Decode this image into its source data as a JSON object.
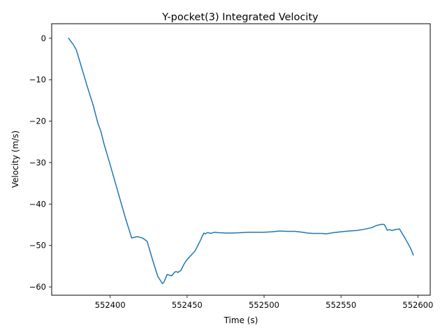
{
  "chart_data": {
    "type": "line",
    "title": "Y-pocket(3) Integrated Velocity",
    "xlabel": "Time (s)",
    "ylabel": "Velocity (m/s)",
    "xlim": [
      552362,
      552608
    ],
    "ylim": [
      -62,
      3.5
    ],
    "xticks": [
      552400,
      552450,
      552500,
      552550,
      552600
    ],
    "yticks": [
      0,
      -10,
      -20,
      -30,
      -40,
      -50,
      -60
    ],
    "xtick_labels": [
      "552400",
      "552450",
      "552500",
      "552550",
      "552600"
    ],
    "ytick_labels": [
      "0",
      "−10",
      "−20",
      "−30",
      "−40",
      "−50",
      "−60"
    ],
    "grid": false,
    "series": [
      {
        "color": "#1f77b4",
        "x": [
          552373,
          552376,
          552378,
          552381,
          552385,
          552389,
          552392,
          552394,
          552396,
          552400,
          552405,
          552410,
          552414,
          552417,
          552418,
          552421,
          552424,
          552426,
          552428,
          552431,
          552434,
          552435,
          552437,
          552439,
          552440,
          552442,
          552443,
          552444,
          552446,
          552448,
          552450,
          552453,
          552455,
          552457,
          552459,
          552460,
          552461,
          552462,
          552463,
          552464,
          552465,
          552466,
          552468,
          552470,
          552475,
          552480,
          552485,
          552490,
          552495,
          552500,
          552505,
          552510,
          552515,
          552520,
          552525,
          552528,
          552532,
          552535,
          552538,
          552540,
          552542,
          552545,
          552550,
          552555,
          552560,
          552565,
          552570,
          552573,
          552576,
          552578,
          552579,
          552580,
          552582,
          552583,
          552585,
          552588,
          552592,
          552595,
          552597
        ],
        "y": [
          0,
          -1.5,
          -2.8,
          -6.5,
          -11.5,
          -16.2,
          -20.5,
          -22.5,
          -25.5,
          -30.5,
          -37,
          -43.5,
          -48.2,
          -47.9,
          -47.9,
          -48.2,
          -49.0,
          -51.5,
          -54.0,
          -57.5,
          -59.2,
          -58.8,
          -57.0,
          -57.2,
          -57.3,
          -56.4,
          -56.3,
          -56.5,
          -56.0,
          -54.5,
          -53.4,
          -52.2,
          -51.4,
          -50.0,
          -48.5,
          -47.6,
          -47.0,
          -47.2,
          -46.9,
          -46.9,
          -47.1,
          -47.0,
          -46.8,
          -46.9,
          -47.0,
          -47.0,
          -46.9,
          -46.8,
          -46.8,
          -46.8,
          -46.7,
          -46.5,
          -46.6,
          -46.6,
          -46.8,
          -47.0,
          -47.1,
          -47.1,
          -47.1,
          -47.2,
          -47.1,
          -46.9,
          -46.7,
          -46.5,
          -46.4,
          -46.1,
          -45.7,
          -45.2,
          -44.9,
          -44.9,
          -45.5,
          -46.3,
          -46.2,
          -46.4,
          -46.2,
          -46.0,
          -48.5,
          -50.5,
          -52.3
        ]
      }
    ]
  }
}
